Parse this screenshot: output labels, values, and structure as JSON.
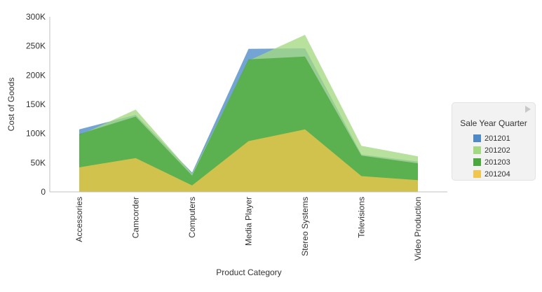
{
  "chart_data": {
    "type": "area",
    "xlabel": "Product Category",
    "ylabel": "Cost of Goods",
    "ylim": [
      0,
      300000
    ],
    "yticks": [
      0,
      50000,
      100000,
      150000,
      200000,
      250000,
      300000
    ],
    "ytick_labels": [
      "0",
      "50K",
      "100K",
      "150K",
      "200K",
      "250K",
      "300K"
    ],
    "categories": [
      "Accessories",
      "Camcorder",
      "Computers",
      "Media Player",
      "Stereo Systems",
      "Televisions",
      "Video Production"
    ],
    "legend": {
      "title": "Sale Year Quarter",
      "placement": "right"
    },
    "grid": false,
    "series": [
      {
        "name": "201201",
        "color": "#4d8ac7",
        "values": [
          107000,
          132000,
          33000,
          245000,
          246000,
          64000,
          52000
        ]
      },
      {
        "name": "201202",
        "color": "#a3d982",
        "values": [
          97000,
          141000,
          31000,
          225000,
          269000,
          79000,
          61000
        ]
      },
      {
        "name": "201203",
        "color": "#4aa83d",
        "values": [
          99000,
          129000,
          28000,
          227000,
          232000,
          62000,
          49000
        ]
      },
      {
        "name": "201204",
        "color": "#f2c64d",
        "values": [
          42000,
          58000,
          11000,
          87000,
          107000,
          27000,
          20000
        ]
      }
    ]
  }
}
